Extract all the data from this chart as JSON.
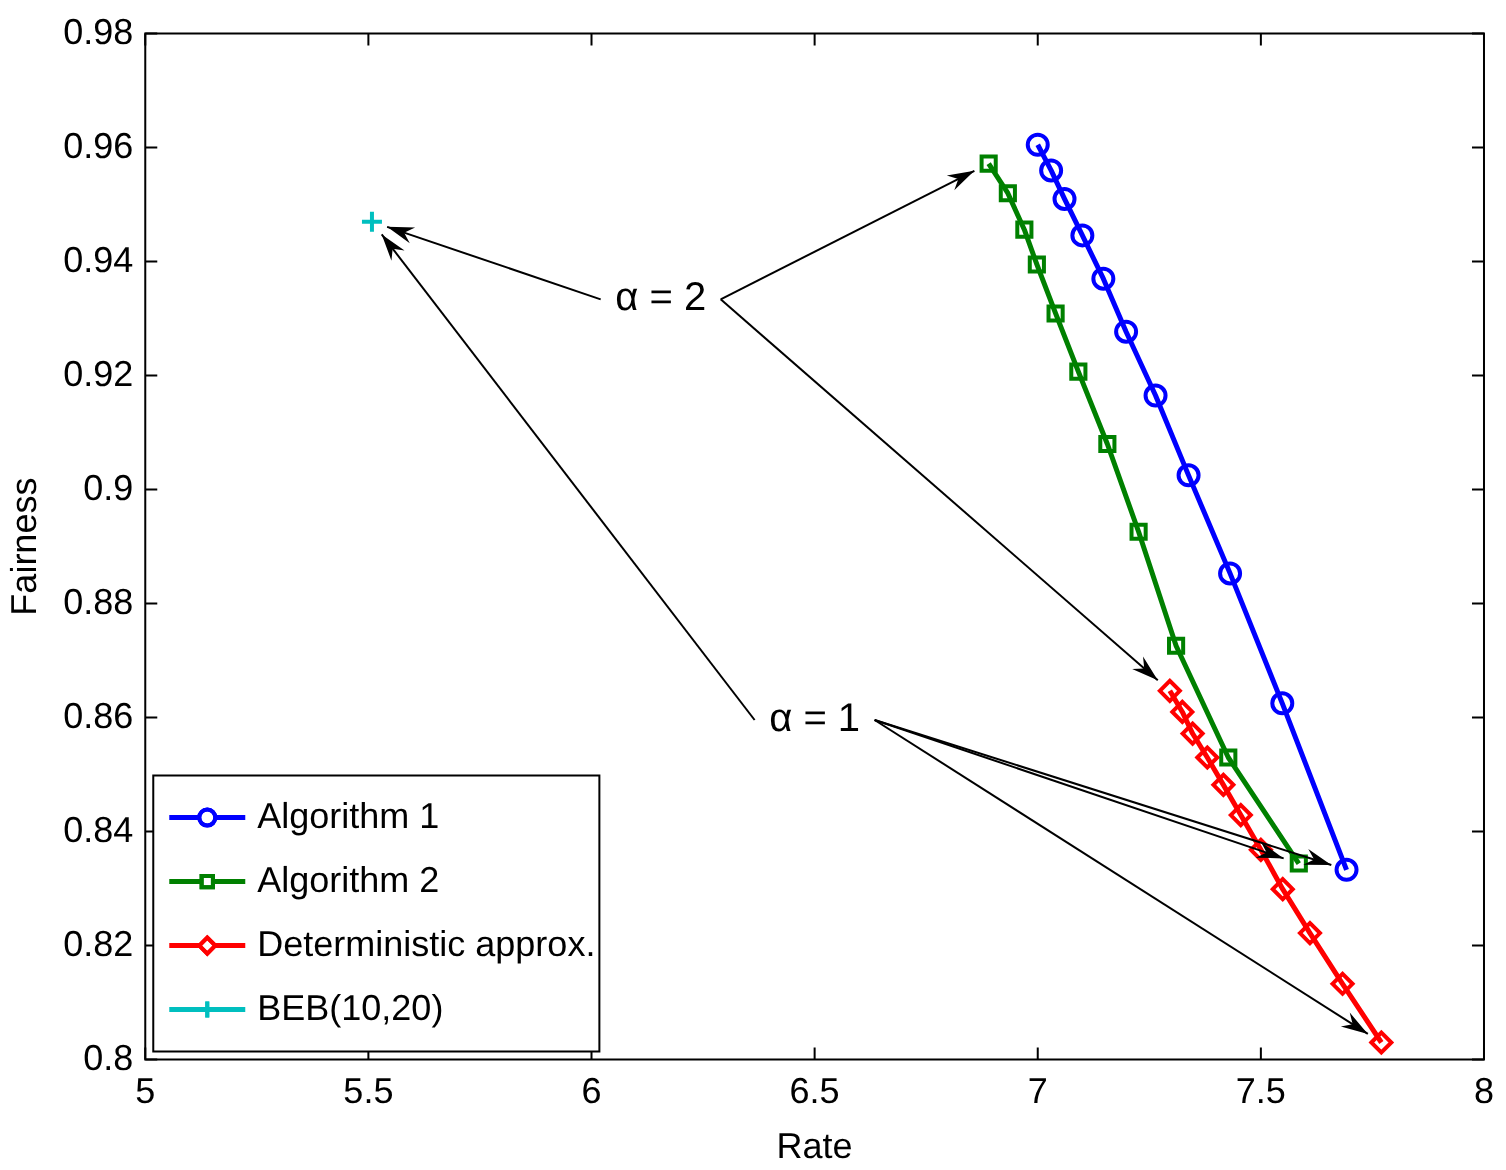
{
  "chart_data": {
    "type": "line",
    "xlabel": "Rate",
    "ylabel": "Fairness",
    "xlim": [
      5,
      8
    ],
    "ylim": [
      0.8,
      0.98
    ],
    "xticks": [
      5,
      5.5,
      6,
      6.5,
      7,
      7.5,
      8
    ],
    "yticks": [
      0.8,
      0.82,
      0.84,
      0.86,
      0.88,
      0.9,
      0.92,
      0.94,
      0.96,
      0.98
    ],
    "grid": false,
    "legend": "bottom left",
    "series": [
      {
        "name": "Algorithm 1",
        "color": "#0000ff",
        "marker": "circle",
        "x": [
          7.0,
          7.03,
          7.06,
          7.1,
          7.147,
          7.198,
          7.264,
          7.338,
          7.431,
          7.548,
          7.692
        ],
        "values": [
          0.9605,
          0.956,
          0.951,
          0.9446,
          0.937,
          0.9277,
          0.9165,
          0.9025,
          0.8853,
          0.8625,
          0.8333
        ]
      },
      {
        "name": "Algorithm 2",
        "color": "#008000",
        "marker": "square",
        "x": [
          6.89,
          6.933,
          6.97,
          6.998,
          7.04,
          7.091,
          7.156,
          7.226,
          7.31,
          7.427,
          7.585
        ],
        "values": [
          0.9572,
          0.952,
          0.9456,
          0.9395,
          0.9309,
          0.9207,
          0.908,
          0.8926,
          0.8726,
          0.853,
          0.8344
        ]
      },
      {
        "name": "Deterministic approx.",
        "color": "#ff0000",
        "marker": "diamond",
        "x": [
          7.296,
          7.324,
          7.347,
          7.38,
          7.416,
          7.455,
          7.5,
          7.549,
          7.61,
          7.683,
          7.77
        ],
        "values": [
          0.8647,
          0.861,
          0.8572,
          0.853,
          0.8482,
          0.8429,
          0.8368,
          0.8299,
          0.8222,
          0.8133,
          0.803
        ]
      },
      {
        "name": "BEB(10,20)",
        "color": "#00bfbf",
        "marker": "cross",
        "x": [
          5.508
        ],
        "values": [
          0.947
        ]
      }
    ],
    "annotations": [
      {
        "text": "α = 2",
        "x": 6.89,
        "y": 0.9572
      },
      {
        "text": "α = 1",
        "x": 7.77,
        "y": 0.803
      }
    ]
  }
}
